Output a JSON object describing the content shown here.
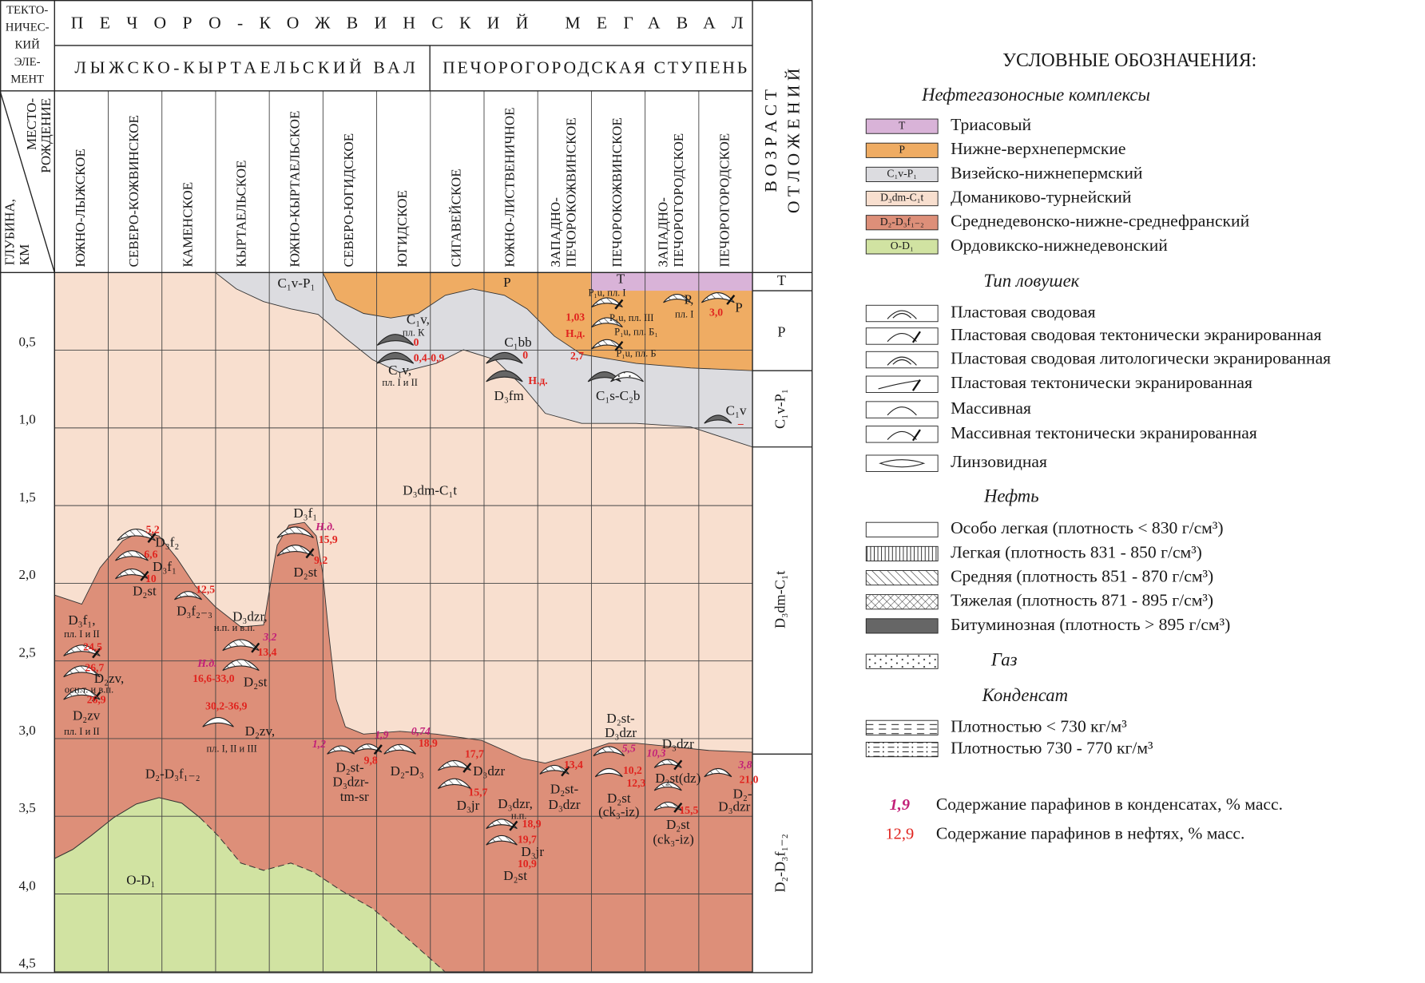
{
  "header": {
    "tectonic_element": [
      "ТЕКТО-",
      "НИЧЕС-",
      "КИЙ",
      "ЭЛЕ-",
      "МЕНТ"
    ],
    "depth_header": [
      "ГЛУБИНА,",
      "КМ"
    ],
    "field_header": [
      "МЕСТО-",
      "РОЖДЕНИЕ"
    ],
    "megaswell": "ПЕЧОРО-КОЖВИНСКИЙ МЕГАВАЛ",
    "swells": [
      "ЛЫЖСКО-КЫРТАЕЛЬСКИЙ ВАЛ",
      "ПЕЧОРОГОРОДСКАЯ СТУПЕНЬ"
    ],
    "age_header": [
      "В О З Р А С Т",
      "О Т Л О Ж Е Н И Й"
    ]
  },
  "fields": [
    [
      "ЮЖНО-ЛЫЖСКОЕ"
    ],
    [
      "СЕВЕРО-КОЖВИНСКОЕ"
    ],
    [
      "КАМЕНСКОЕ"
    ],
    [
      "КЫРТАЕЛЬСКОЕ"
    ],
    [
      "ЮЖНО-КЫРТАЕЛЬСКОЕ"
    ],
    [
      "СЕВЕРО-ЮГИДСКОЕ"
    ],
    [
      "ЮГИДСКОЕ"
    ],
    [
      "СИГАВЕЙСКОЕ"
    ],
    [
      "ЮЖНО-ЛИСТВЕНИЧНОЕ"
    ],
    [
      "ЗАПАДНО-",
      "ПЕЧОРОКОЖВИНСКОЕ"
    ],
    [
      "ПЕЧОРОКОЖВИНСКОЕ"
    ],
    [
      "ЗАПАДНО-",
      "ПЕЧОРОГОРОДСКОЕ"
    ],
    [
      "ПЕЧОРОГОРОДСКОЕ"
    ]
  ],
  "depths": [
    "0,5",
    "1,0",
    "1,5",
    "2,0",
    "2,5",
    "3,0",
    "3,5",
    "4,0",
    "4,5"
  ],
  "ages": [
    "T",
    "P",
    "C₁v-P₁",
    "D₃dm-C₁t",
    "D₂-D₃f₁₋₂"
  ],
  "labels": [
    "C₁v-P₁",
    "P",
    "T",
    "C₁v,",
    "пл. К",
    "0",
    "0,4-0,9",
    "C₁v,",
    "пл. I и II",
    "C₁bb",
    "0",
    "Н.д.",
    "D₃fm",
    "P₁u, пл. I",
    "1,03",
    "P₁u, пл. III",
    "Н.д.",
    "P₁u, пл. Б₁",
    "2,7",
    "P₁u, пл. Б",
    "C₁s-C₂b",
    "P,",
    "пл. I",
    "3,0",
    "P",
    "C₁v",
    "–",
    "D₃dm-C₁t",
    "D₃f₁",
    "Н.д.",
    "15,9",
    "9,2",
    "D₂st",
    "5,2",
    "D₃f₂",
    "6,6",
    "D₃f₁",
    "10",
    "D₂st",
    "12,5",
    "D₃f₂₋₃",
    "D₃dzr,",
    "н.п. и в.п.",
    "3,2",
    "13,4",
    "Н.д.",
    "16,6-33,0",
    "D₂st",
    "30,2-36,9",
    "D₂zv,",
    "пл. I, II и III",
    "D₃f₁,",
    "пл. I и II",
    "24,5",
    "26,7",
    "D₂zv,",
    "осн.т. и в.п.",
    "26,9",
    "D₂zv",
    "пл. I и II",
    "D₂-D₃f₁₋₂",
    "O-D₁",
    "1,2",
    "1,9",
    "9,8",
    "D₂st-",
    "D₃dzr-",
    "tm-sr",
    "0,74",
    "18,9",
    "D₂-D₃",
    "17,7",
    "D₃dzr",
    "15,7",
    "D₃jr",
    "D₃dzr,",
    "н.п.",
    "18,9",
    "19,7",
    "D₃jr",
    "10,9",
    "D₂st",
    "13,4",
    "D₂st-",
    "D₃dzr",
    "D₂st-",
    "D₃dzr",
    "5,5",
    "10,2",
    "12,3",
    "D₂st",
    "(ck₃-iz)",
    "D₃dzr",
    "10,3",
    "D₂st(dz)",
    "15,5",
    "D₂st",
    "(ck₃-iz)",
    "3,8",
    "21,0",
    "D₂-",
    "D₃dzr"
  ],
  "legend": {
    "title": "УСЛОВНЫЕ ОБОЗНАЧЕНИЯ:",
    "complexes_title": "Нефтегазоносные комплексы",
    "complexes": [
      {
        "code": "T",
        "name": "Триасовый"
      },
      {
        "code": "P",
        "name": "Нижне-верхнепермские"
      },
      {
        "code": "C₁v-P₁",
        "name": "Визейско-нижнепермский"
      },
      {
        "code": "D₃dm-C₁t",
        "name": "Доманиково-турнейский"
      },
      {
        "code": "D₂-D₃f₁₋₂",
        "name": "Среднедевонско-нижне-среднефранский"
      },
      {
        "code": "O-D₁",
        "name": "Ордовикско-нижнедевонский"
      }
    ],
    "traps_title": "Тип ловушек",
    "traps": [
      "Пластовая сводовая",
      "Пластовая сводовая  тектонически экранированная",
      "Пластовая сводовая литологически экранированная",
      "Пластовая тектонически экранированная",
      "Массивная",
      "Массивная тектонически экранированная",
      "Линзовидная"
    ],
    "oil_title": "Нефть",
    "oil": [
      "Особо легкая (плотность < 830 г/см³)",
      "Легкая (плотность 831 - 850 г/см³)",
      "Средняя (плотность 851 - 870 г/см³)",
      "Тяжелая (плотность 871 - 895 г/см³)",
      "Битуминозная (плотность > 895 г/см³)"
    ],
    "gas": "Газ",
    "condensate_title": "Конденсат",
    "condensate": [
      "Плотностью  < 730 кг/м³",
      "Плотностью  730 - 770 кг/м³"
    ],
    "paraffin": [
      {
        "sample": "1,9",
        "text": "Содержание парафинов в конденсатах, % масс."
      },
      {
        "sample": "12,9",
        "text": "Содержание парафинов в нефтях, % масс."
      }
    ]
  }
}
